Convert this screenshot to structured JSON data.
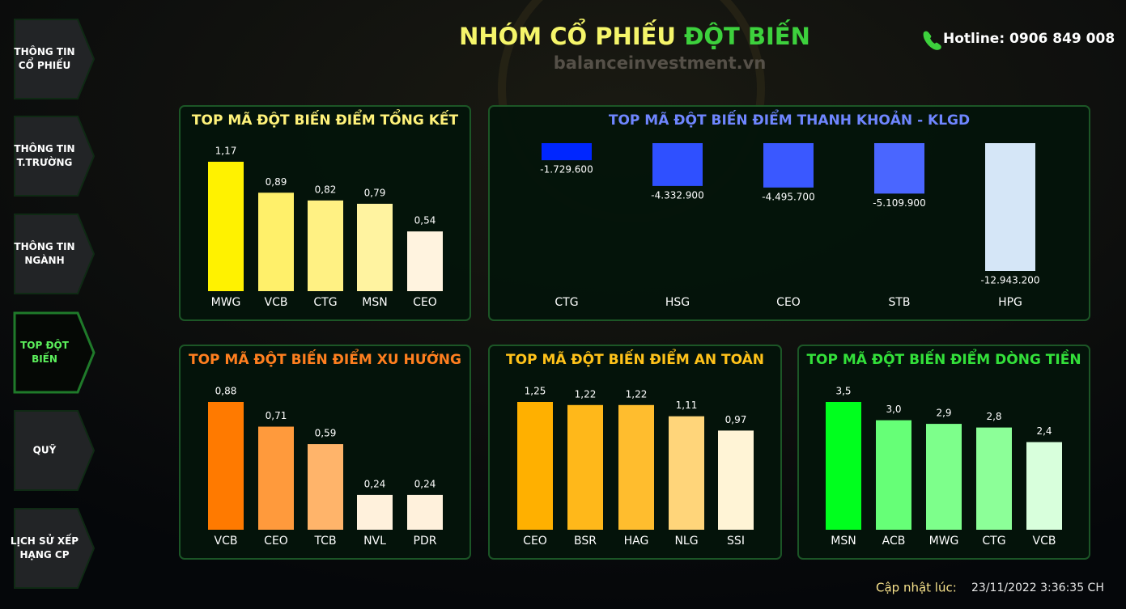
{
  "header": {
    "title_part1": "NHÓM CỔ PHIẾU",
    "title_part2": "ĐỘT BIẾN",
    "watermark": "balanceinvestment.vn",
    "hotline": "Hotline: 0906 849 008"
  },
  "nav": {
    "items": [
      {
        "lines": [
          "THÔNG TIN",
          "CỔ PHIẾU"
        ]
      },
      {
        "lines": [
          "THÔNG TIN",
          "T.TRƯỜNG"
        ]
      },
      {
        "lines": [
          "THÔNG TIN",
          "NGÀNH"
        ]
      },
      {
        "lines": [
          "TOP ĐỘT",
          "BIẾN"
        ],
        "active": true
      },
      {
        "lines": [
          "QUỸ"
        ]
      },
      {
        "lines": [
          "LỊCH SỬ XẾP",
          "HẠNG CP"
        ]
      }
    ]
  },
  "footer": {
    "label": "Cập nhật lúc:",
    "timestamp": "23/11/2022 3:36:35 CH"
  },
  "chart_data": [
    {
      "type": "bar",
      "title": "TOP MÃ ĐỘT BIẾN ĐIỂM TỔNG KẾT",
      "title_color": "#fff27a",
      "categories": [
        "MWG",
        "VCB",
        "CTG",
        "MSN",
        "CEO"
      ],
      "values": [
        1.17,
        0.89,
        0.82,
        0.79,
        0.54
      ],
      "value_labels": [
        "1,17",
        "0,89",
        "0,82",
        "0,79",
        "0,54"
      ],
      "colors": [
        "#fff200",
        "#fff06a",
        "#fff183",
        "#fff3a0",
        "#fff3df"
      ]
    },
    {
      "type": "bar",
      "title": "TOP MÃ ĐỘT BIẾN ĐIỂM THANH KHOẢN - KLGD",
      "title_color": "#6f86ff",
      "categories": [
        "CTG",
        "HSG",
        "CEO",
        "STB",
        "HPG"
      ],
      "values": [
        -1729600,
        -4332900,
        -4495700,
        -5109900,
        -12943200
      ],
      "value_labels": [
        "-1.729.600",
        "-4.332.900",
        "-4.495.700",
        "-5.109.900",
        "-12.943.200"
      ],
      "colors": [
        "#0026ff",
        "#2f50ff",
        "#3a58ff",
        "#4a66ff",
        "#d5e6f7"
      ]
    },
    {
      "type": "bar",
      "title": "TOP MÃ ĐỘT BIẾN ĐIỂM XU HƯỚNG",
      "title_color": "#ff7f1f",
      "categories": [
        "VCB",
        "CEO",
        "TCB",
        "NVL",
        "PDR"
      ],
      "values": [
        0.88,
        0.71,
        0.59,
        0.24,
        0.24
      ],
      "value_labels": [
        "0,88",
        "0,71",
        "0,59",
        "0,24",
        "0,24"
      ],
      "colors": [
        "#ff7a00",
        "#ff9a3c",
        "#ffb46a",
        "#fff1dc",
        "#fff1dc"
      ]
    },
    {
      "type": "bar",
      "title": "TOP MÃ ĐỘT BIẾN ĐIỂM AN TOÀN",
      "title_color": "#ffc21a",
      "categories": [
        "CEO",
        "BSR",
        "HAG",
        "NLG",
        "SSI"
      ],
      "values": [
        1.25,
        1.22,
        1.22,
        1.11,
        0.97
      ],
      "value_labels": [
        "1,25",
        "1,22",
        "1,22",
        "1,11",
        "0,97"
      ],
      "colors": [
        "#ffb000",
        "#ffb81a",
        "#ffbd2e",
        "#ffd57a",
        "#fff4d6"
      ]
    },
    {
      "type": "bar",
      "title": "TOP MÃ ĐỘT BIẾN ĐIỂM DÒNG TIỀN",
      "title_color": "#33e03a",
      "categories": [
        "MSN",
        "ACB",
        "MWG",
        "CTG",
        "VCB"
      ],
      "values": [
        3.5,
        3.0,
        2.9,
        2.8,
        2.4
      ],
      "value_labels": [
        "3,5",
        "3,0",
        "2,9",
        "2,8",
        "2,4"
      ],
      "colors": [
        "#00ff1e",
        "#66ff77",
        "#7dff8b",
        "#8cff98",
        "#d8ffdc"
      ]
    }
  ]
}
